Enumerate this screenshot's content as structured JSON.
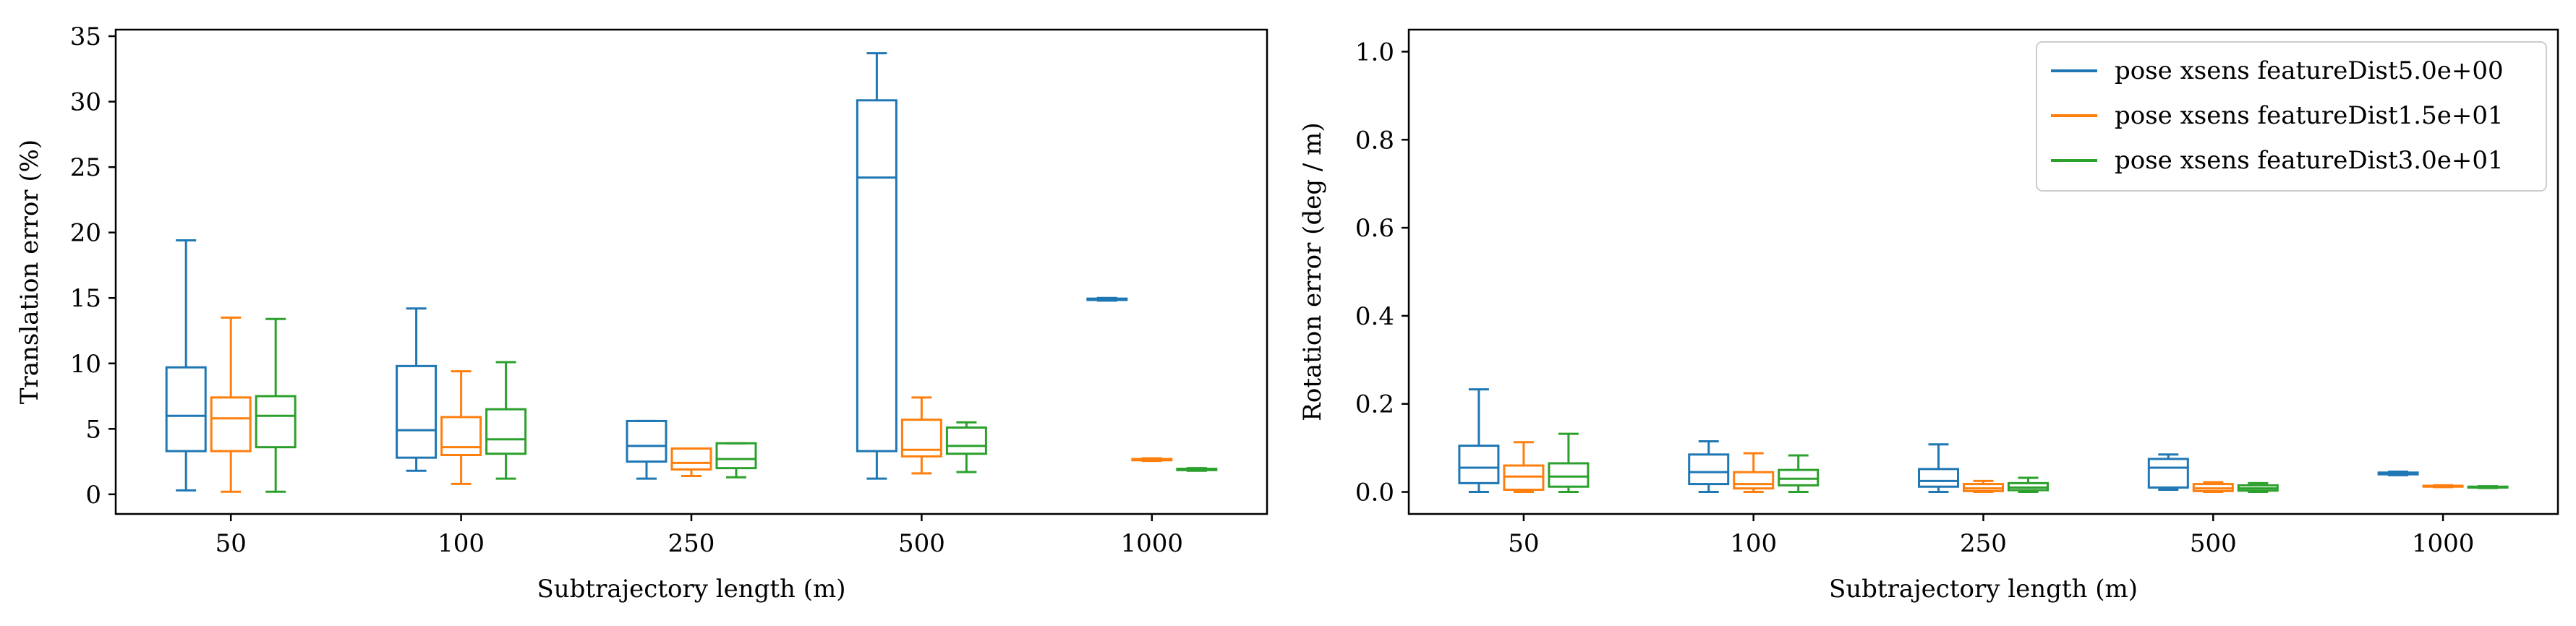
{
  "chart_data": [
    {
      "type": "box",
      "xlabel": "Subtrajectory length (m)",
      "ylabel": "Translation error (%)",
      "categories": [
        "50",
        "100",
        "250",
        "500",
        "1000"
      ],
      "ylim": [
        -1.5,
        35.5
      ],
      "yticks": [
        0,
        5,
        10,
        15,
        20,
        25,
        30,
        35
      ],
      "grid": false,
      "series": [
        {
          "color": "#1f77b4",
          "boxes": [
            {
              "min": 0.3,
              "q1": 3.3,
              "median": 6.0,
              "q3": 9.7,
              "max": 19.4
            },
            {
              "min": 1.8,
              "q1": 2.8,
              "median": 4.9,
              "q3": 9.8,
              "max": 14.2
            },
            {
              "min": 1.2,
              "q1": 2.5,
              "median": 3.7,
              "q3": 5.6,
              "max": 5.6
            },
            {
              "min": 1.2,
              "q1": 3.3,
              "median": 24.2,
              "q3": 30.1,
              "max": 33.7
            },
            {
              "min": 14.8,
              "q1": 14.85,
              "median": 14.9,
              "q3": 14.95,
              "max": 15.0
            }
          ]
        },
        {
          "color": "#ff7f0e",
          "boxes": [
            {
              "min": 0.2,
              "q1": 3.3,
              "median": 5.8,
              "q3": 7.4,
              "max": 13.5
            },
            {
              "min": 0.8,
              "q1": 3.0,
              "median": 3.6,
              "q3": 5.9,
              "max": 9.4
            },
            {
              "min": 1.4,
              "q1": 1.9,
              "median": 2.4,
              "q3": 3.5,
              "max": 3.5
            },
            {
              "min": 1.6,
              "q1": 2.9,
              "median": 3.4,
              "q3": 5.7,
              "max": 7.4
            },
            {
              "min": 2.55,
              "q1": 2.6,
              "median": 2.65,
              "q3": 2.7,
              "max": 2.75
            }
          ]
        },
        {
          "color": "#2ca02c",
          "boxes": [
            {
              "min": 0.2,
              "q1": 3.6,
              "median": 6.0,
              "q3": 7.5,
              "max": 13.4
            },
            {
              "min": 1.2,
              "q1": 3.1,
              "median": 4.2,
              "q3": 6.5,
              "max": 10.1
            },
            {
              "min": 1.3,
              "q1": 2.0,
              "median": 2.7,
              "q3": 3.9,
              "max": 3.9
            },
            {
              "min": 1.7,
              "q1": 3.1,
              "median": 3.7,
              "q3": 5.1,
              "max": 5.5
            },
            {
              "min": 1.8,
              "q1": 1.85,
              "median": 1.9,
              "q3": 1.95,
              "max": 2.0
            }
          ]
        }
      ]
    },
    {
      "type": "box",
      "xlabel": "Subtrajectory length (m)",
      "ylabel": "Rotation error (deg / m)",
      "categories": [
        "50",
        "100",
        "250",
        "500",
        "1000"
      ],
      "ylim": [
        -0.05,
        1.05
      ],
      "yticks": [
        "0.0",
        "0.2",
        "0.4",
        "0.6",
        "0.8",
        "1.0"
      ],
      "grid": false,
      "legend_position": "top-right",
      "legend": [
        {
          "label": "pose xsens featureDist5.0e+00",
          "color": "#1f77b4"
        },
        {
          "label": "pose xsens featureDist1.5e+01",
          "color": "#ff7f0e"
        },
        {
          "label": "pose xsens featureDist3.0e+01",
          "color": "#2ca02c"
        }
      ],
      "series": [
        {
          "name": "pose xsens featureDist5.0e+00",
          "color": "#1f77b4",
          "boxes": [
            {
              "min": 0.0,
              "q1": 0.02,
              "median": 0.055,
              "q3": 0.105,
              "max": 0.233
            },
            {
              "min": 0.0,
              "q1": 0.018,
              "median": 0.045,
              "q3": 0.085,
              "max": 0.115
            },
            {
              "min": 0.0,
              "q1": 0.012,
              "median": 0.025,
              "q3": 0.052,
              "max": 0.108
            },
            {
              "min": 0.005,
              "q1": 0.01,
              "median": 0.055,
              "q3": 0.075,
              "max": 0.085
            },
            {
              "min": 0.038,
              "q1": 0.04,
              "median": 0.042,
              "q3": 0.044,
              "max": 0.046
            }
          ]
        },
        {
          "name": "pose xsens featureDist1.5e+01",
          "color": "#ff7f0e",
          "boxes": [
            {
              "min": 0.0,
              "q1": 0.005,
              "median": 0.035,
              "q3": 0.06,
              "max": 0.113
            },
            {
              "min": 0.0,
              "q1": 0.008,
              "median": 0.018,
              "q3": 0.045,
              "max": 0.088
            },
            {
              "min": 0.0,
              "q1": 0.002,
              "median": 0.008,
              "q3": 0.018,
              "max": 0.025
            },
            {
              "min": 0.0,
              "q1": 0.002,
              "median": 0.008,
              "q3": 0.018,
              "max": 0.022
            },
            {
              "min": 0.011,
              "q1": 0.012,
              "median": 0.013,
              "q3": 0.014,
              "max": 0.015
            }
          ]
        },
        {
          "name": "pose xsens featureDist3.0e+01",
          "color": "#2ca02c",
          "boxes": [
            {
              "min": 0.0,
              "q1": 0.012,
              "median": 0.035,
              "q3": 0.065,
              "max": 0.132
            },
            {
              "min": 0.0,
              "q1": 0.015,
              "median": 0.03,
              "q3": 0.05,
              "max": 0.083
            },
            {
              "min": 0.0,
              "q1": 0.004,
              "median": 0.01,
              "q3": 0.02,
              "max": 0.032
            },
            {
              "min": 0.0,
              "q1": 0.003,
              "median": 0.008,
              "q3": 0.015,
              "max": 0.02
            },
            {
              "min": 0.009,
              "q1": 0.01,
              "median": 0.011,
              "q3": 0.012,
              "max": 0.013
            }
          ]
        }
      ]
    }
  ]
}
